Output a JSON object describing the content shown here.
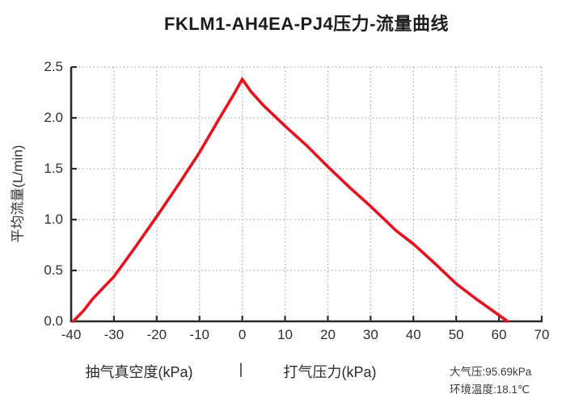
{
  "title": "FKLM1-AH4EA-PJ4压力-流量曲线",
  "ylabel": "平均流量(L/min)",
  "xcaption": {
    "left": "抽气真空度(kPa)",
    "separator": "|",
    "right": "打气压力(kPa)"
  },
  "annotations": {
    "pressure": "大气压:95.69kPa",
    "temperature": "环境温度:18.1℃"
  },
  "colors": {
    "line": "#e8121d",
    "grid": "#b0b0b0",
    "axis": "#2b2b2b",
    "background": "#ffffff"
  },
  "chart_data": {
    "type": "line",
    "title": "FKLM1-AH4EA-PJ4压力-流量曲线",
    "xlabel": "抽气真空度(kPa) | 打气压力(kPa)",
    "ylabel": "平均流量(L/min)",
    "xlim": [
      -40,
      70
    ],
    "ylim": [
      0,
      2.5
    ],
    "x_ticks": [
      -40,
      -30,
      -20,
      -10,
      0,
      10,
      20,
      30,
      40,
      50,
      60,
      70
    ],
    "y_ticks": [
      0,
      0.5,
      1,
      1.5,
      2,
      2.5
    ],
    "y_tick_labels": [
      "0.0",
      "0.5",
      "1.0",
      "1.5",
      "2.0",
      "2.5"
    ],
    "grid": true,
    "legend": false,
    "series": [
      {
        "name": "压力-流量曲线",
        "color": "#e8121d",
        "points": [
          [
            -39.5,
            0
          ],
          [
            -37,
            0.11
          ],
          [
            -35,
            0.22
          ],
          [
            -30,
            0.44
          ],
          [
            -25,
            0.73
          ],
          [
            -20,
            1.03
          ],
          [
            -15,
            1.34
          ],
          [
            -10,
            1.66
          ],
          [
            -5,
            2.02
          ],
          [
            -2,
            2.23
          ],
          [
            0,
            2.38
          ],
          [
            2,
            2.26
          ],
          [
            5,
            2.12
          ],
          [
            10,
            1.92
          ],
          [
            15,
            1.73
          ],
          [
            20,
            1.52
          ],
          [
            25,
            1.32
          ],
          [
            30,
            1.13
          ],
          [
            33,
            1.01
          ],
          [
            36,
            0.89
          ],
          [
            40,
            0.76
          ],
          [
            45,
            0.57
          ],
          [
            50,
            0.37
          ],
          [
            55,
            0.21
          ],
          [
            60,
            0.06
          ],
          [
            62,
            0
          ]
        ]
      }
    ]
  }
}
